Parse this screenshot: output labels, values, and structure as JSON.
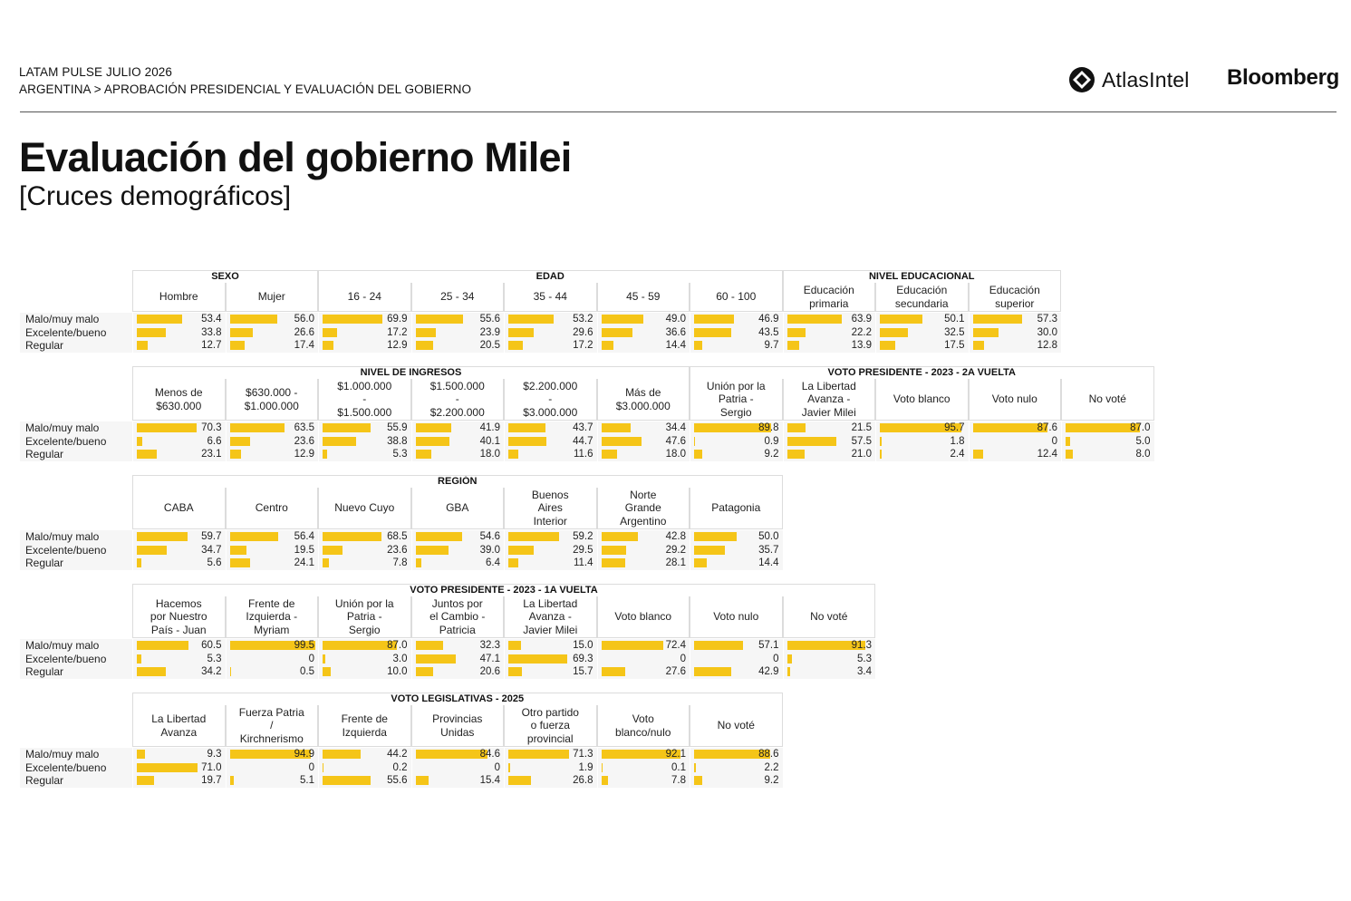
{
  "header": {
    "line1": "LATAM PULSE JULIO 2026",
    "line2": "ARGENTINA > APROBACIÓN PRESIDENCIAL Y EVALUACIÓN DEL GOBIERNO",
    "logo_atlas": "AtlasIntel",
    "logo_bloomberg": "Bloomberg"
  },
  "title": "Evaluación del gobierno Milei",
  "subtitle": "[Cruces demográficos]",
  "row_labels": [
    "Malo/muy malo",
    "Excelente/bueno",
    "Regular"
  ],
  "colors": {
    "bar": "#f5c518",
    "row_bg": "#f6f6f6"
  },
  "chart_data": [
    {
      "type": "table",
      "groups": [
        {
          "label": "SEXO",
          "span": 2
        },
        {
          "label": "EDAD",
          "span": 5
        },
        {
          "label": "NIVEL EDUCACIONAL",
          "span": 3
        }
      ],
      "columns": [
        {
          "label": "Hombre",
          "values": [
            53.4,
            33.8,
            12.7
          ]
        },
        {
          "label": "Mujer",
          "values": [
            56.0,
            26.6,
            17.4
          ]
        },
        {
          "label": "16 - 24",
          "values": [
            69.9,
            17.2,
            12.9
          ]
        },
        {
          "label": "25 - 34",
          "values": [
            55.6,
            23.9,
            20.5
          ]
        },
        {
          "label": "35 - 44",
          "values": [
            53.2,
            29.6,
            17.2
          ]
        },
        {
          "label": "45 - 59",
          "values": [
            49.0,
            36.6,
            14.4
          ]
        },
        {
          "label": "60 - 100",
          "values": [
            46.9,
            43.5,
            9.7
          ]
        },
        {
          "label": "Educación\nprimaria",
          "values": [
            63.9,
            22.2,
            13.9
          ]
        },
        {
          "label": "Educación\nsecundaria",
          "values": [
            50.1,
            32.5,
            17.5
          ]
        },
        {
          "label": "Educación\nsuperior",
          "values": [
            57.3,
            30.0,
            12.8
          ]
        }
      ]
    },
    {
      "type": "table",
      "groups": [
        {
          "label": "NIVEL DE INGRESOS",
          "span": 6
        },
        {
          "label": "VOTO PRESIDENTE - 2023 - 2A VUELTA",
          "span": 5
        }
      ],
      "columns": [
        {
          "label": "Menos de\n$630.000",
          "values": [
            70.3,
            6.6,
            23.1
          ]
        },
        {
          "label": "$630.000 -\n$1.000.000",
          "values": [
            63.5,
            23.6,
            12.9
          ]
        },
        {
          "label": "$1.000.000\n-\n$1.500.000",
          "values": [
            55.9,
            38.8,
            5.3
          ]
        },
        {
          "label": "$1.500.000\n-\n$2.200.000",
          "values": [
            41.9,
            40.1,
            18.0
          ]
        },
        {
          "label": "$2.200.000\n-\n$3.000.000",
          "values": [
            43.7,
            44.7,
            11.6
          ]
        },
        {
          "label": "Más de\n$3.000.000",
          "values": [
            34.4,
            47.6,
            18.0
          ]
        },
        {
          "label": "Unión por la\nPatria -\nSergio",
          "values": [
            89.8,
            0.9,
            9.2
          ]
        },
        {
          "label": "La Libertad\nAvanza -\nJavier Milei",
          "values": [
            21.5,
            57.5,
            21.0
          ]
        },
        {
          "label": "Voto blanco",
          "values": [
            95.7,
            1.8,
            2.4
          ]
        },
        {
          "label": "Voto nulo",
          "values": [
            87.6,
            0,
            12.4
          ]
        },
        {
          "label": "No voté",
          "values": [
            87.0,
            5.0,
            8.0
          ]
        }
      ]
    },
    {
      "type": "table",
      "groups": [
        {
          "label": "REGIÓN",
          "span": 7
        }
      ],
      "columns": [
        {
          "label": "CABA",
          "values": [
            59.7,
            34.7,
            5.6
          ]
        },
        {
          "label": "Centro",
          "values": [
            56.4,
            19.5,
            24.1
          ]
        },
        {
          "label": "Nuevo Cuyo",
          "values": [
            68.5,
            23.6,
            7.8
          ]
        },
        {
          "label": "GBA",
          "values": [
            54.6,
            39.0,
            6.4
          ]
        },
        {
          "label": "Buenos\nAires\nInterior",
          "values": [
            59.2,
            29.5,
            11.4
          ]
        },
        {
          "label": "Norte\nGrande\nArgentino",
          "values": [
            42.8,
            29.2,
            28.1
          ]
        },
        {
          "label": "Patagonia",
          "values": [
            50.0,
            35.7,
            14.4
          ]
        }
      ]
    },
    {
      "type": "table",
      "groups": [
        {
          "label": "VOTO PRESIDENTE - 2023 - 1A VUELTA",
          "span": 8
        }
      ],
      "columns": [
        {
          "label": "Hacemos\npor Nuestro\nPaís - Juan",
          "values": [
            60.5,
            5.3,
            34.2
          ]
        },
        {
          "label": "Frente de\nIzquierda -\nMyriam",
          "values": [
            99.5,
            0,
            0.5
          ]
        },
        {
          "label": "Unión por la\nPatria -\nSergio",
          "values": [
            87.0,
            3.0,
            10.0
          ]
        },
        {
          "label": "Juntos por\nel Cambio -\nPatricia",
          "values": [
            32.3,
            47.1,
            20.6
          ]
        },
        {
          "label": "La Libertad\nAvanza -\nJavier Milei",
          "values": [
            15.0,
            69.3,
            15.7
          ]
        },
        {
          "label": "Voto blanco",
          "values": [
            72.4,
            0,
            27.6
          ]
        },
        {
          "label": "Voto nulo",
          "values": [
            57.1,
            0,
            42.9
          ]
        },
        {
          "label": "No voté",
          "values": [
            91.3,
            5.3,
            3.4
          ]
        }
      ]
    },
    {
      "type": "table",
      "groups": [
        {
          "label": "VOTO LEGISLATIVAS - 2025",
          "span": 7
        }
      ],
      "columns": [
        {
          "label": "La Libertad\nAvanza",
          "values": [
            9.3,
            71.0,
            19.7
          ]
        },
        {
          "label": "Fuerza Patria\n/\nKirchnerismo",
          "values": [
            94.9,
            0.0,
            5.1
          ]
        },
        {
          "label": "Frente de\nIzquierda",
          "values": [
            44.2,
            0.2,
            55.6
          ]
        },
        {
          "label": "Provincias\nUnidas",
          "values": [
            84.6,
            0,
            15.4
          ]
        },
        {
          "label": "Otro partido\no fuerza\nprovincial",
          "values": [
            71.3,
            1.9,
            26.8
          ]
        },
        {
          "label": "Voto\nblanco/nulo",
          "values": [
            92.1,
            0.1,
            7.8
          ]
        },
        {
          "label": "No voté",
          "values": [
            88.6,
            2.2,
            9.2
          ]
        }
      ]
    }
  ]
}
